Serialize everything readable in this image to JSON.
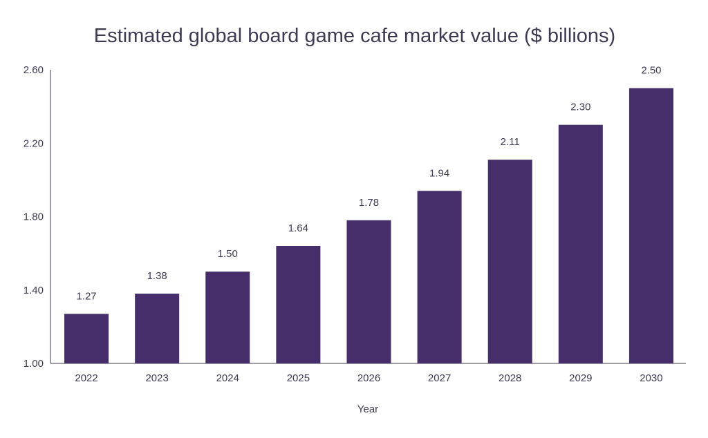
{
  "chart_data": {
    "type": "bar",
    "title": "Estimated global board game cafe market value ($ billions)",
    "xlabel": "Year",
    "ylabel": "",
    "categories": [
      "2022",
      "2023",
      "2024",
      "2025",
      "2026",
      "2027",
      "2028",
      "2029",
      "2030"
    ],
    "values": [
      1.27,
      1.38,
      1.5,
      1.64,
      1.78,
      1.94,
      2.11,
      2.3,
      2.5
    ],
    "value_labels": [
      "1.27",
      "1.38",
      "1.50",
      "1.64",
      "1.78",
      "1.94",
      "2.11",
      "2.30",
      "2.50"
    ],
    "ylim": [
      1.0,
      2.6
    ],
    "yticks": [
      1.0,
      1.4,
      1.8,
      2.2,
      2.6
    ],
    "ytick_labels": [
      "1.00",
      "1.40",
      "1.80",
      "2.20",
      "2.60"
    ],
    "grid": false,
    "legend": "none",
    "bar_color": "#452e6a"
  }
}
